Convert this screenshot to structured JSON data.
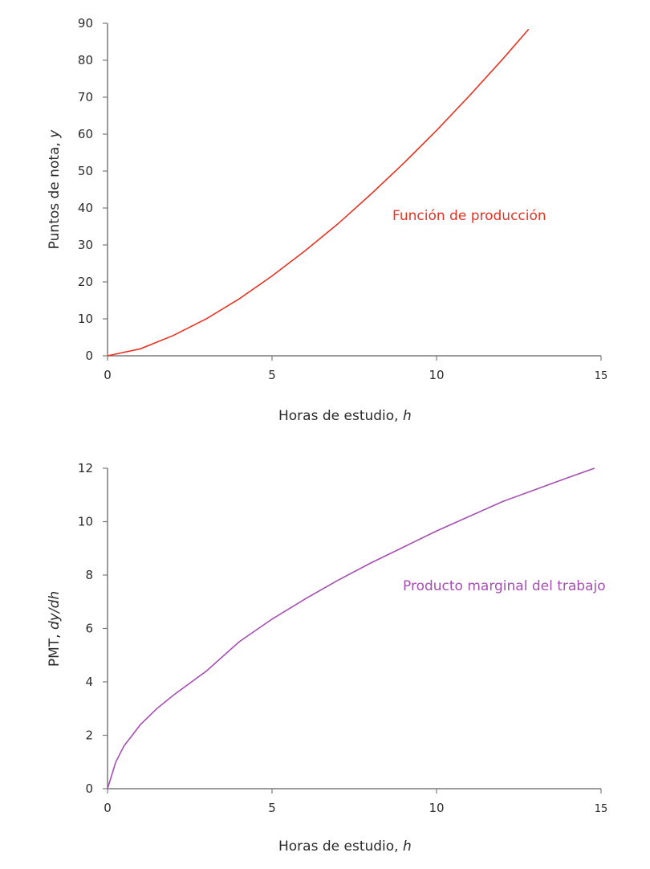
{
  "chart_data": [
    {
      "type": "line",
      "title": "",
      "xlabel": "Horas de estudio, h",
      "xlabel_main": "Horas de estudio, ",
      "xlabel_var": "h",
      "ylabel": "Puntos de nota, y",
      "ylabel_main": "Puntos de nota, ",
      "ylabel_var": "y",
      "xlim": [
        0,
        15
      ],
      "ylim": [
        0,
        90
      ],
      "x_ticks": [
        "0",
        "5",
        "10",
        "15"
      ],
      "y_ticks": [
        "0",
        "10",
        "20",
        "30",
        "40",
        "50",
        "60",
        "70",
        "80",
        "90"
      ],
      "grid": false,
      "series": [
        {
          "name": "Función de producción",
          "color": "#e63323",
          "x": [
            0,
            1,
            2,
            3,
            4,
            5,
            6,
            7,
            8,
            9,
            10,
            11,
            12,
            12.8
          ],
          "values": [
            0,
            1.9,
            5.5,
            10.0,
            15.4,
            21.6,
            28.4,
            35.7,
            43.7,
            52.1,
            61.0,
            70.4,
            80.2,
            88.4
          ]
        }
      ],
      "annotations": [
        {
          "text": "Función de producción",
          "x": 8.7,
          "y": 38
        }
      ]
    },
    {
      "type": "line",
      "title": "",
      "xlabel": "Horas de estudio, h",
      "xlabel_main": "Horas de estudio, ",
      "xlabel_var": "h",
      "ylabel": "PMT, dy/dh",
      "ylabel_main": "PMT, ",
      "ylabel_var": "dy/dh",
      "xlim": [
        0,
        15
      ],
      "ylim": [
        0,
        12
      ],
      "x_ticks": [
        "0",
        "5",
        "10",
        "15"
      ],
      "y_ticks": [
        "0",
        "2",
        "4",
        "6",
        "8",
        "10",
        "12"
      ],
      "grid": false,
      "series": [
        {
          "name": "Producto marginal del trabajo",
          "color": "#a54fb2",
          "x": [
            0,
            0.25,
            0.5,
            1,
            1.5,
            2,
            3,
            4,
            5,
            6,
            7,
            8,
            9,
            10,
            11,
            12,
            13,
            14,
            14.8
          ],
          "values": [
            0,
            1.0,
            1.6,
            2.4,
            3.0,
            3.5,
            4.4,
            5.5,
            6.35,
            7.1,
            7.8,
            8.45,
            9.05,
            9.65,
            10.2,
            10.75,
            11.2,
            11.65,
            12.0
          ]
        }
      ],
      "annotations": [
        {
          "text": "Producto marginal del trabajo",
          "x": 9.0,
          "y": 7.6
        }
      ]
    }
  ]
}
